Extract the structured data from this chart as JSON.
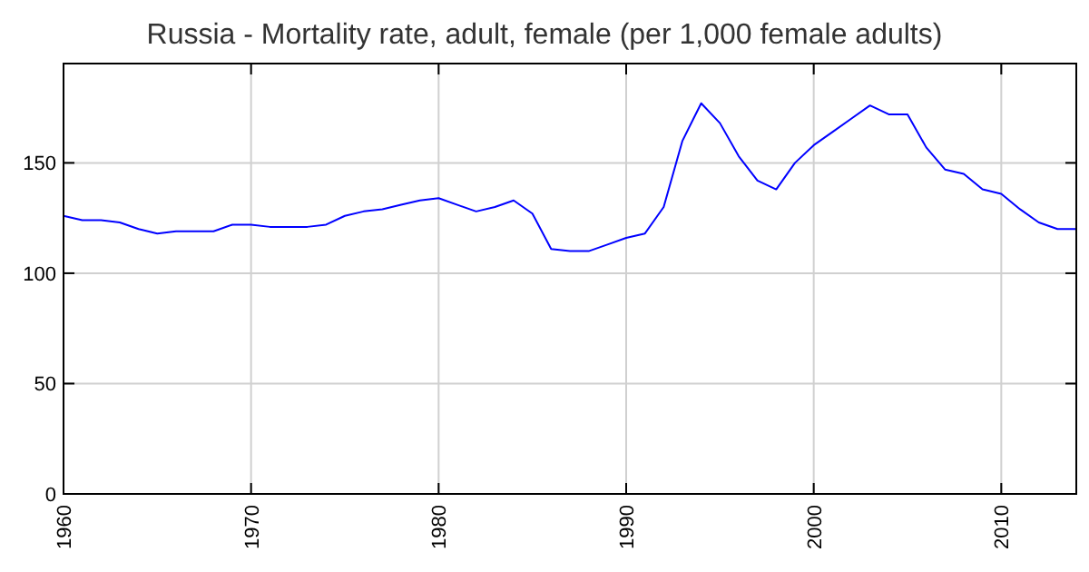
{
  "chart_data": {
    "type": "line",
    "title": "Russia - Mortality rate, adult, female (per 1,000 female adults)",
    "x": [
      1960,
      1961,
      1962,
      1963,
      1964,
      1965,
      1966,
      1967,
      1968,
      1969,
      1970,
      1971,
      1972,
      1973,
      1974,
      1975,
      1976,
      1977,
      1978,
      1979,
      1980,
      1981,
      1982,
      1983,
      1984,
      1985,
      1986,
      1987,
      1988,
      1989,
      1990,
      1991,
      1992,
      1993,
      1994,
      1995,
      1996,
      1997,
      1998,
      1999,
      2000,
      2001,
      2002,
      2003,
      2004,
      2005,
      2006,
      2007,
      2008,
      2009,
      2010,
      2011,
      2012,
      2013,
      2014
    ],
    "series": [
      {
        "color": "#0000ff",
        "values": [
          126,
          124,
          124,
          123,
          120,
          118,
          119,
          119,
          119,
          122,
          122,
          121,
          121,
          121,
          122,
          126,
          128,
          129,
          131,
          133,
          134,
          131,
          128,
          130,
          133,
          127,
          111,
          110,
          110,
          113,
          116,
          118,
          130,
          160,
          177,
          168,
          153,
          142,
          138,
          150,
          158,
          164,
          170,
          176,
          172,
          172,
          157,
          147,
          145,
          138,
          136,
          129,
          123,
          120,
          120
        ]
      }
    ],
    "xlim": [
      1960,
      2014
    ],
    "ylim": [
      0,
      195
    ],
    "xticks": [
      1960,
      1970,
      1980,
      1990,
      2000,
      2010
    ],
    "yticks": [
      0,
      50,
      100,
      150
    ],
    "grid": true,
    "marker": "none",
    "line_style": "solid"
  }
}
